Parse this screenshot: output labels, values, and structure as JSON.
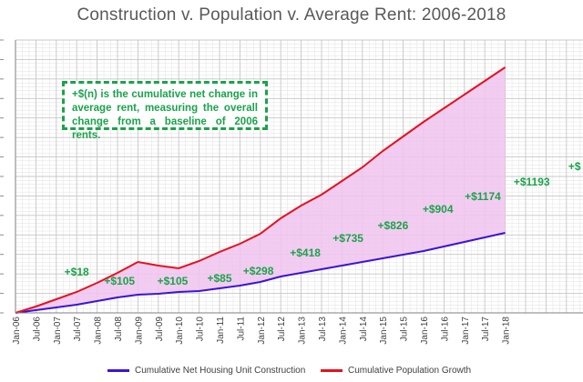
{
  "chart_data": {
    "type": "area",
    "title": "Construction v. Population v. Average Rent: 2006-2018",
    "note": "+$(n) is the cumulative net change in average rent, measuring the overall change from a baseline of 2006 rents.",
    "x_tick_labels": [
      "Jan-06",
      "Jul-06",
      "Jan-07",
      "Jul-07",
      "Jan-08",
      "Jul-08",
      "Jan-09",
      "Jul-09",
      "Jan-10",
      "Jul-10",
      "Jan-11",
      "Jul-11",
      "Jan-12",
      "Jul-12",
      "Jan-13",
      "Jul-13",
      "Jan-14",
      "Jul-14",
      "Jan-15",
      "Jul-15",
      "Jan-16",
      "Jul-16",
      "Jan-17",
      "Jul-17",
      "Jan-18"
    ],
    "grid": true,
    "legend_position": "bottom",
    "series": [
      {
        "name": "Cumulative Net Housing Unit Construction",
        "color": "#3b14d6",
        "values": [
          0,
          3,
          6,
          9,
          13,
          17,
          20,
          21,
          23,
          24,
          27,
          30,
          34,
          40,
          44,
          48,
          52,
          56,
          60,
          64,
          68,
          73,
          78,
          83,
          88
        ]
      },
      {
        "name": "Cumulative Population Growth",
        "color": "#e8101e",
        "values": [
          0,
          7,
          15,
          23,
          33,
          44,
          56,
          52,
          49,
          57,
          67,
          76,
          87,
          104,
          118,
          130,
          145,
          160,
          178,
          194,
          210,
          225,
          240,
          255,
          270
        ]
      }
    ],
    "fill_between_color": "#f1c4ee",
    "rent_labels": [
      {
        "text": "+$18",
        "x_index": 3.0,
        "y_value": 41
      },
      {
        "text": "+$105",
        "x_index": 5.1,
        "y_value": 31
      },
      {
        "text": "+$105",
        "x_index": 7.7,
        "y_value": 31
      },
      {
        "text": "+$85",
        "x_index": 10.0,
        "y_value": 34
      },
      {
        "text": "+$298",
        "x_index": 11.9,
        "y_value": 42
      },
      {
        "text": "+$418",
        "x_index": 14.2,
        "y_value": 62
      },
      {
        "text": "+$735",
        "x_index": 16.3,
        "y_value": 78
      },
      {
        "text": "+$826",
        "x_index": 18.5,
        "y_value": 92
      },
      {
        "text": "+$904",
        "x_index": 20.7,
        "y_value": 110
      },
      {
        "text": "+$1174",
        "x_index": 22.9,
        "y_value": 124
      },
      {
        "text": "+$1193",
        "x_index": 25.3,
        "y_value": 140
      },
      {
        "text": "+$",
        "x_index": 27.4,
        "y_value": 157
      }
    ]
  },
  "legend": {
    "construction": "Cumulative Net Housing Unit Construction",
    "population": "Cumulative Population Growth"
  }
}
